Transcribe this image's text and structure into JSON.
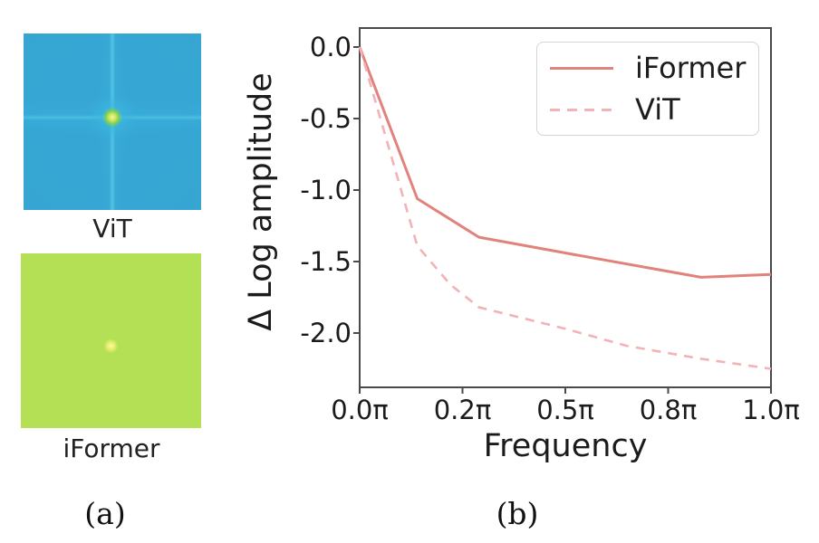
{
  "figure": {
    "panel_a": {
      "caption": "(a)",
      "images": [
        {
          "label": "ViT",
          "description": "fourier-spectrum-heatmap"
        },
        {
          "label": "iFormer",
          "description": "fourier-spectrum-heatmap"
        }
      ]
    },
    "panel_b": {
      "caption": "(b)"
    }
  },
  "chart_data": {
    "type": "line",
    "title": "",
    "xlabel": "Frequency",
    "ylabel": "Δ Log amplitude",
    "grid": false,
    "legend_position": "upper right",
    "ylim": [
      -2.38,
      0.13
    ],
    "x_ticks": [
      {
        "label": "0.0π",
        "pos": 0.0
      },
      {
        "label": "0.2π",
        "pos": 0.25
      },
      {
        "label": "0.5π",
        "pos": 0.5
      },
      {
        "label": "0.8π",
        "pos": 0.75
      },
      {
        "label": "1.0π",
        "pos": 1.0
      }
    ],
    "y_ticks": [
      {
        "label": "0.0",
        "value": 0.0
      },
      {
        "label": "-0.5",
        "value": -0.5
      },
      {
        "label": "-1.0",
        "value": -1.0
      },
      {
        "label": "-1.5",
        "value": -1.5
      },
      {
        "label": "-2.0",
        "value": -2.0
      }
    ],
    "series": [
      {
        "name": "iFormer",
        "style": "solid",
        "color": "#e2827d",
        "points": [
          [
            0.0,
            0.0
          ],
          [
            0.14,
            -1.06
          ],
          [
            0.29,
            -1.33
          ],
          [
            0.5,
            -1.44
          ],
          [
            0.83,
            -1.61
          ],
          [
            1.0,
            -1.59
          ]
        ]
      },
      {
        "name": "ViT",
        "style": "dashed",
        "color": "#f2b2b6",
        "points": [
          [
            0.0,
            0.0
          ],
          [
            0.14,
            -1.39
          ],
          [
            0.22,
            -1.66
          ],
          [
            0.29,
            -1.82
          ],
          [
            0.5,
            -1.97
          ],
          [
            0.65,
            -2.09
          ],
          [
            0.83,
            -2.18
          ],
          [
            1.0,
            -2.25
          ]
        ]
      }
    ]
  },
  "colors": {
    "axis": "#4a4a4a",
    "text": "#1b1b1b",
    "legend_border": "#d4d4d4",
    "iformer_line": "#e2827d",
    "vit_line": "#f2b2b6",
    "spectrum_background": "#0a10a0"
  }
}
